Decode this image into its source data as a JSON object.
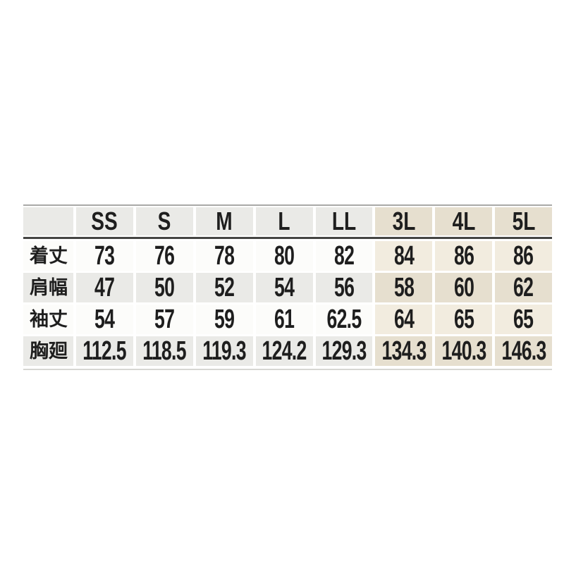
{
  "table": {
    "corner_label": "",
    "size_headers": [
      "SS",
      "S",
      "M",
      "L",
      "LL",
      "3L",
      "4L",
      "5L"
    ],
    "highlighted_sizes": [
      "3L",
      "4L",
      "5L"
    ],
    "rows": [
      {
        "label": "着丈",
        "label_chars": [
          "着",
          "丈"
        ],
        "values": [
          "73",
          "76",
          "78",
          "80",
          "82",
          "84",
          "86",
          "86"
        ]
      },
      {
        "label": "肩幅",
        "label_chars": [
          "肩",
          "幅"
        ],
        "values": [
          "47",
          "50",
          "52",
          "54",
          "56",
          "58",
          "60",
          "62"
        ]
      },
      {
        "label": "袖丈",
        "label_chars": [
          "袖",
          "丈"
        ],
        "values": [
          "54",
          "57",
          "59",
          "61",
          "62.5",
          "64",
          "65",
          "65"
        ]
      },
      {
        "label": "胸廻",
        "label_chars": [
          "胸",
          "廻"
        ],
        "values": [
          "112.5",
          "118.5",
          "119.3",
          "124.2",
          "129.3",
          "134.3",
          "140.3",
          "146.3"
        ]
      }
    ],
    "colors": {
      "cell_gray": "#eaeae7",
      "cell_white": "#fcfcfa",
      "cell_beige_light": "#f2ecdf",
      "cell_beige_dark": "#e6dfcf",
      "header_rule": "#454543",
      "top_rule": "#a9a9a7",
      "bottom_rule": "#d6d6d3",
      "text": "#1e1e1e"
    }
  }
}
